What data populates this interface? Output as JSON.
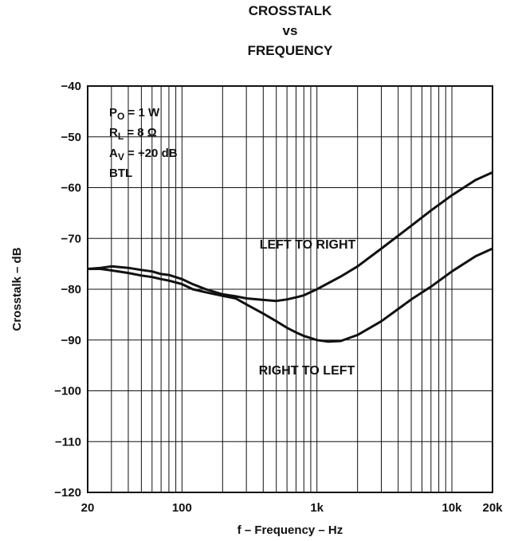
{
  "chart_data": {
    "type": "line",
    "title_lines": [
      "CROSSTALK",
      "vs",
      "FREQUENCY"
    ],
    "xlabel": "f – Frequency – Hz",
    "ylabel": "Crosstalk – dB",
    "x_scale": "log",
    "xlim": [
      20,
      20000
    ],
    "ylim": [
      -120,
      -40
    ],
    "grid": true,
    "x_ticks": [
      {
        "value": 20,
        "label": "20"
      },
      {
        "value": 100,
        "label": "100"
      },
      {
        "value": 1000,
        "label": "1k"
      },
      {
        "value": 10000,
        "label": "10k"
      },
      {
        "value": 20000,
        "label": "20k"
      }
    ],
    "y_ticks": [
      {
        "value": -40,
        "label": "−40"
      },
      {
        "value": -50,
        "label": "−50"
      },
      {
        "value": -60,
        "label": "−60"
      },
      {
        "value": -70,
        "label": "−70"
      },
      {
        "value": -80,
        "label": "−80"
      },
      {
        "value": -90,
        "label": "−90"
      },
      {
        "value": -100,
        "label": "−100"
      },
      {
        "value": -110,
        "label": "−110"
      },
      {
        "value": -120,
        "label": "−120"
      }
    ],
    "conditions": [
      {
        "main": "P",
        "sub": "O",
        "rest": " = 1 W"
      },
      {
        "main": "R",
        "sub": "L",
        "rest": " = 8 Ω"
      },
      {
        "main": "A",
        "sub": "V",
        "rest": " = +20 dB"
      },
      {
        "main": "BTL",
        "sub": "",
        "rest": ""
      }
    ],
    "series": [
      {
        "name": "LEFT TO RIGHT",
        "x": [
          20,
          25,
          30,
          40,
          50,
          60,
          70,
          80,
          100,
          120,
          150,
          200,
          250,
          300,
          400,
          500,
          600,
          700,
          800,
          1000,
          1500,
          2000,
          3000,
          5000,
          7000,
          10000,
          15000,
          20000
        ],
        "y": [
          -76,
          -75.8,
          -75.5,
          -75.8,
          -76.2,
          -76.5,
          -77,
          -77.2,
          -78,
          -79,
          -80,
          -81,
          -81.4,
          -81.8,
          -82.1,
          -82.3,
          -82,
          -81.6,
          -81.2,
          -80,
          -77.5,
          -75.5,
          -72,
          -67.5,
          -64.5,
          -61.5,
          -58.5,
          -57
        ]
      },
      {
        "name": "RIGHT TO LEFT",
        "x": [
          20,
          25,
          30,
          40,
          50,
          60,
          70,
          80,
          100,
          120,
          150,
          200,
          250,
          300,
          400,
          500,
          600,
          700,
          800,
          1000,
          1200,
          1500,
          2000,
          3000,
          5000,
          7000,
          10000,
          15000,
          20000
        ],
        "y": [
          -76,
          -76,
          -76.3,
          -76.8,
          -77.3,
          -77.6,
          -78,
          -78.3,
          -79,
          -80,
          -80.6,
          -81.3,
          -81.8,
          -83,
          -84.8,
          -86.3,
          -87.6,
          -88.5,
          -89.2,
          -90,
          -90.3,
          -90.2,
          -89,
          -86.3,
          -82,
          -79.5,
          -76.5,
          -73.5,
          -72
        ]
      }
    ],
    "curve_labels": [
      {
        "text": "LEFT TO RIGHT",
        "series": 0
      },
      {
        "text": "RIGHT TO LEFT",
        "series": 1
      }
    ]
  }
}
